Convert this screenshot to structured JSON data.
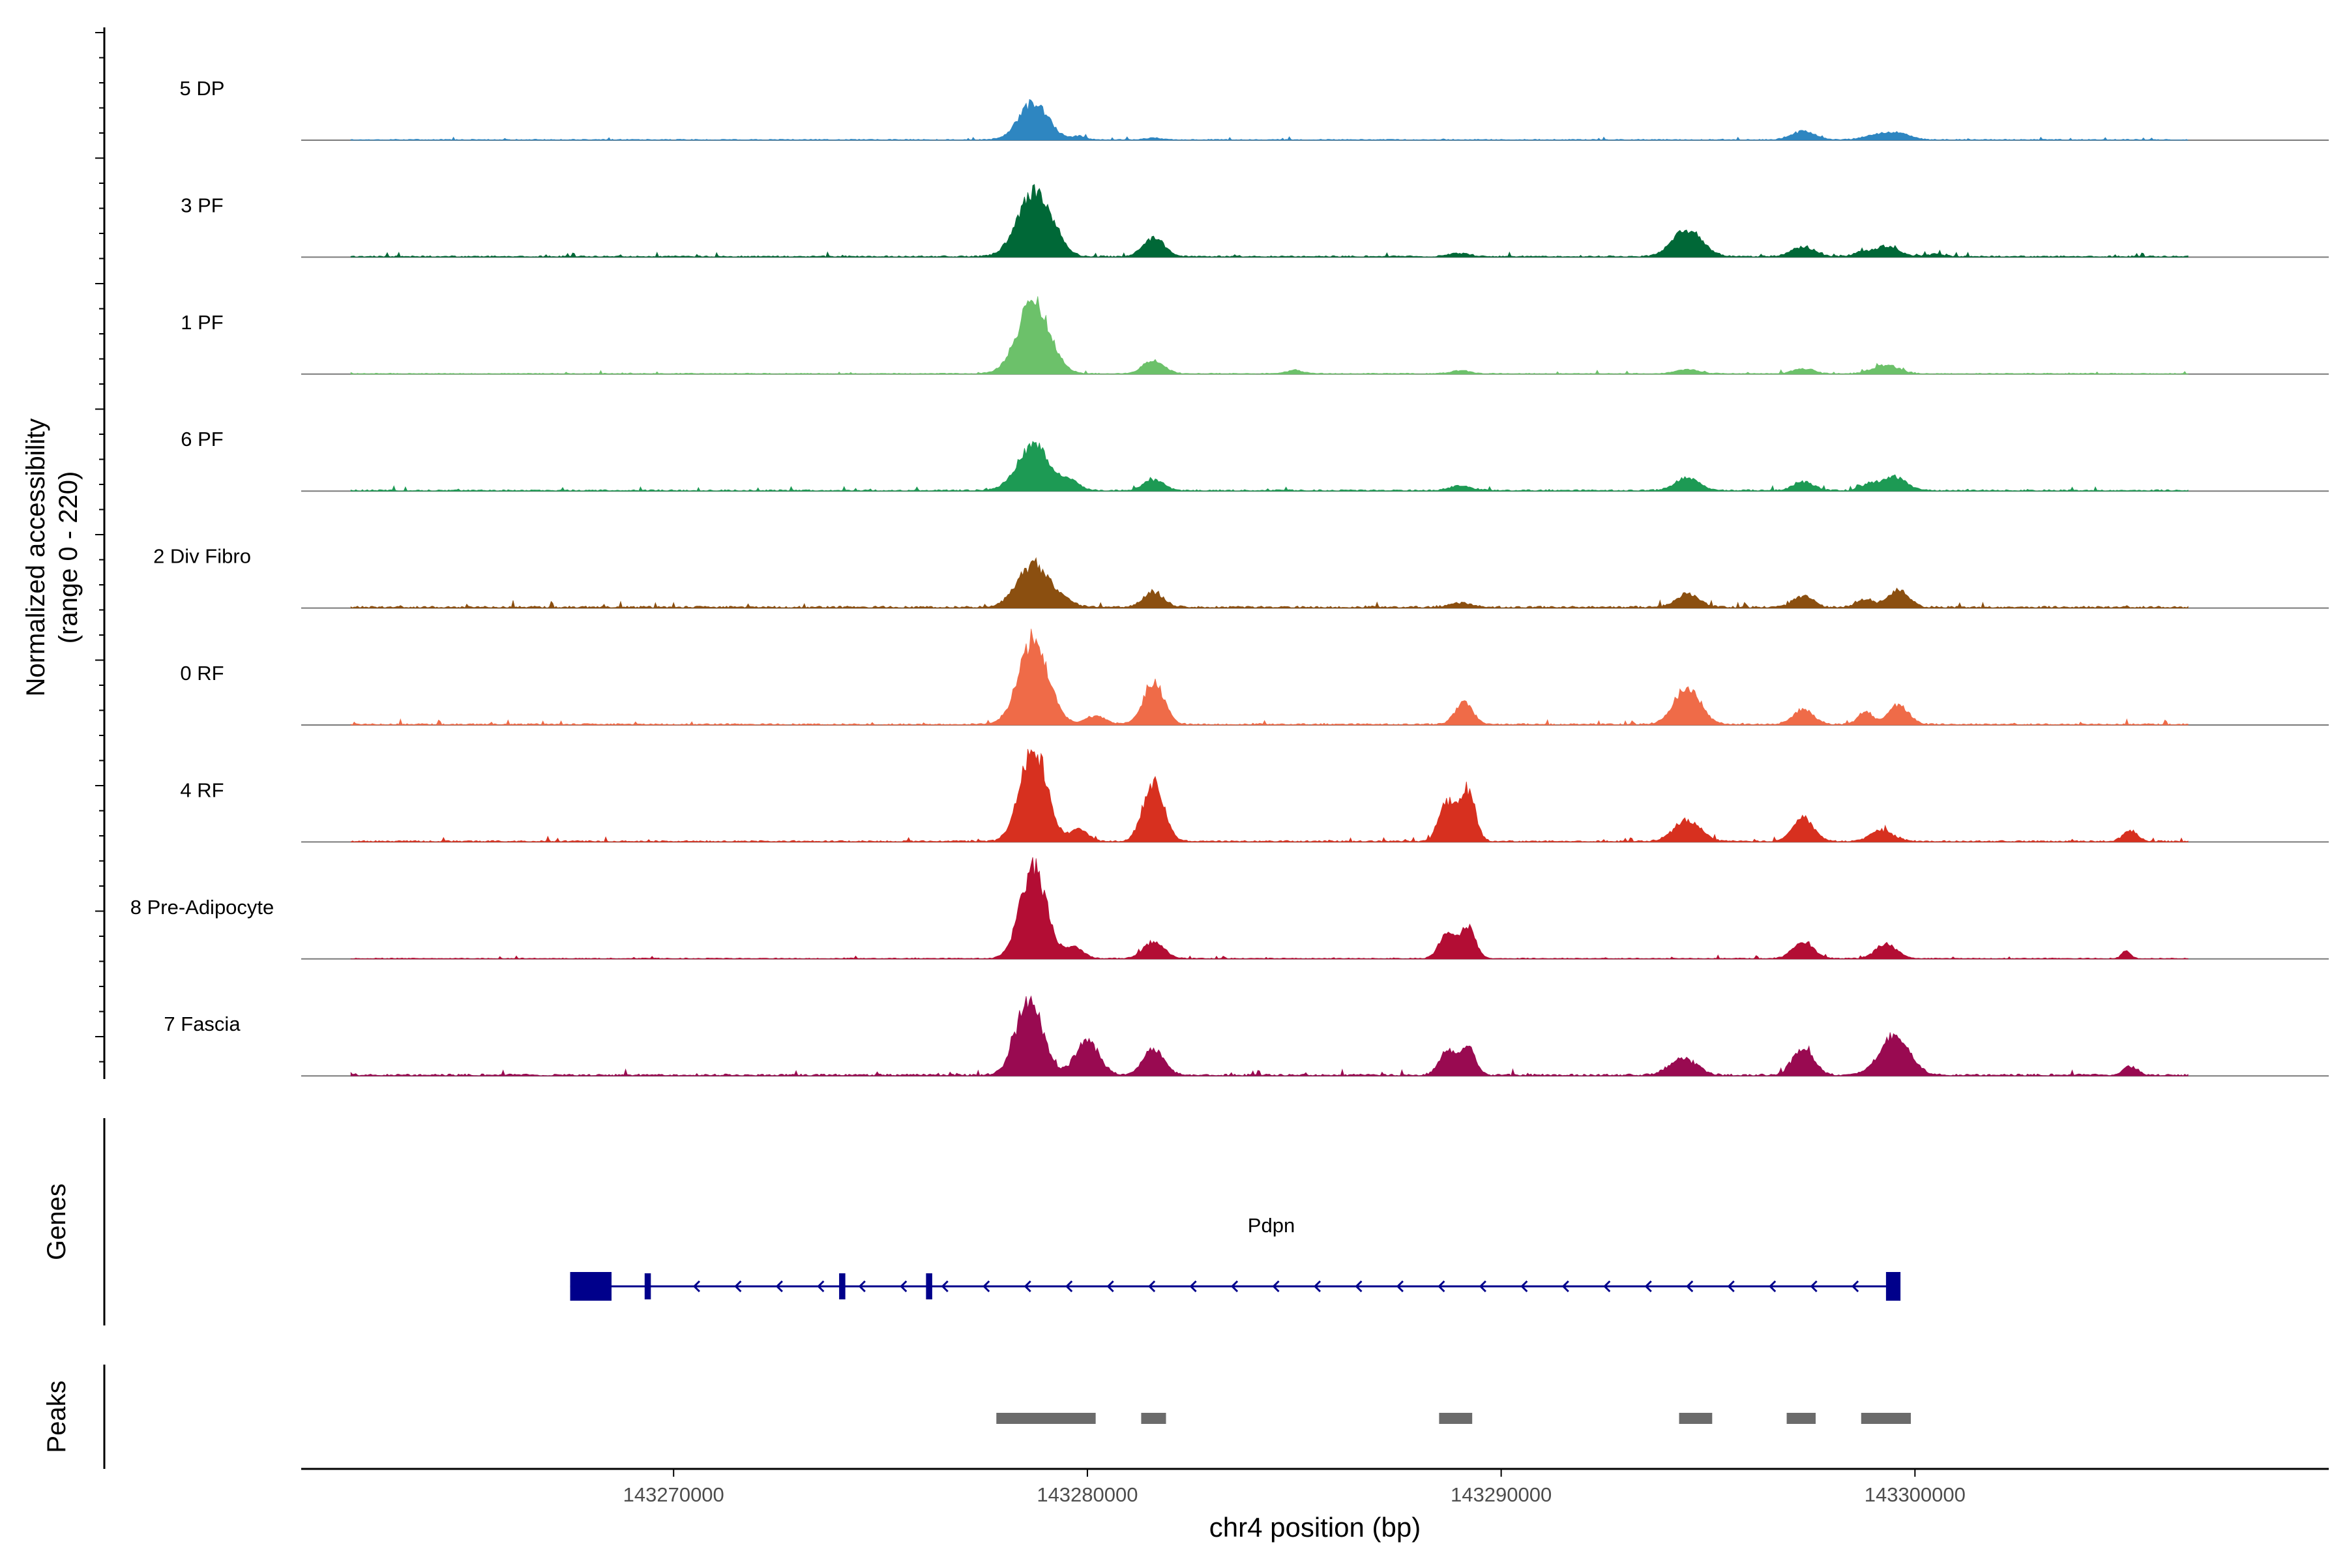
{
  "chart_data": {
    "type": "area",
    "subtype": "genome-coverage-track",
    "ylabel_line1": "Normalized accessibility",
    "ylabel_line2": "(range 0 - 220)",
    "y_range": [
      0,
      220
    ],
    "xlabel": "chr4 position (bp)",
    "xlim": [
      143261000,
      143310000
    ],
    "x_ticks": [
      143270000,
      143280000,
      143290000,
      143300000
    ],
    "x_tick_labels": [
      "143270000",
      "143280000",
      "143290000",
      "143300000"
    ],
    "tracks": [
      {
        "name": "5 DP",
        "color": "#2E86C1",
        "peaks": [
          [
            143278700,
            85,
            500
          ],
          [
            143279800,
            8,
            250
          ],
          [
            143281600,
            4,
            300
          ],
          [
            143297300,
            20,
            400
          ],
          [
            143299200,
            14,
            500
          ],
          [
            143299700,
            10,
            350
          ]
        ],
        "noise": 2
      },
      {
        "name": "3 PF",
        "color": "#006837",
        "peaks": [
          [
            143278700,
            150,
            550
          ],
          [
            143279300,
            15,
            300
          ],
          [
            143281600,
            45,
            350
          ],
          [
            143289000,
            8,
            350
          ],
          [
            143294500,
            62,
            500
          ],
          [
            143297300,
            22,
            400
          ],
          [
            143298700,
            10,
            250
          ],
          [
            143299300,
            24,
            400
          ],
          [
            143300500,
            6,
            300
          ]
        ],
        "noise": 3
      },
      {
        "name": "1 PF",
        "color": "#6CC16A",
        "peaks": [
          [
            143278700,
            165,
            550
          ],
          [
            143281600,
            32,
            350
          ],
          [
            143285000,
            8,
            300
          ],
          [
            143289000,
            8,
            300
          ],
          [
            143294500,
            10,
            400
          ],
          [
            143297300,
            12,
            350
          ],
          [
            143299300,
            20,
            450
          ]
        ],
        "noise": 2
      },
      {
        "name": "6 PF",
        "color": "#1D9A54",
        "peaks": [
          [
            143278700,
            105,
            550
          ],
          [
            143279600,
            20,
            300
          ],
          [
            143281600,
            25,
            350
          ],
          [
            143289000,
            12,
            350
          ],
          [
            143294500,
            30,
            400
          ],
          [
            143297300,
            20,
            350
          ],
          [
            143298900,
            15,
            300
          ],
          [
            143299500,
            32,
            400
          ]
        ],
        "noise": 3
      },
      {
        "name": "2 Div Fibro",
        "color": "#8B4F10",
        "peaks": [
          [
            143278700,
            100,
            550
          ],
          [
            143279500,
            12,
            300
          ],
          [
            143281600,
            35,
            350
          ],
          [
            143289000,
            10,
            350
          ],
          [
            143294500,
            30,
            400
          ],
          [
            143297300,
            25,
            350
          ],
          [
            143298800,
            18,
            300
          ],
          [
            143299600,
            40,
            350
          ]
        ],
        "noise": 4
      },
      {
        "name": "0 RF",
        "color": "#EF6B48",
        "peaks": [
          [
            143278700,
            200,
            500
          ],
          [
            143280200,
            20,
            350
          ],
          [
            143281600,
            100,
            350
          ],
          [
            143289100,
            50,
            300
          ],
          [
            143294500,
            85,
            450
          ],
          [
            143297300,
            35,
            350
          ],
          [
            143298800,
            28,
            250
          ],
          [
            143299600,
            45,
            350
          ]
        ],
        "noise": 3
      },
      {
        "name": "4 RF",
        "color": "#D7301F",
        "peaks": [
          [
            143278700,
            220,
            450
          ],
          [
            143279800,
            28,
            300
          ],
          [
            143281600,
            140,
            350
          ],
          [
            143288700,
            90,
            280
          ],
          [
            143289200,
            120,
            250
          ],
          [
            143294500,
            50,
            450
          ],
          [
            143297300,
            55,
            350
          ],
          [
            143299200,
            25,
            400
          ],
          [
            143305200,
            25,
            250
          ]
        ],
        "noise": 3
      },
      {
        "name": "8 Pre-Adipocyte",
        "color": "#B30D34",
        "peaks": [
          [
            143278700,
            210,
            450
          ],
          [
            143279700,
            25,
            300
          ],
          [
            143281600,
            40,
            350
          ],
          [
            143288700,
            55,
            280
          ],
          [
            143289200,
            72,
            250
          ],
          [
            143297300,
            40,
            350
          ],
          [
            143299300,
            35,
            350
          ],
          [
            143305100,
            18,
            150
          ]
        ],
        "noise": 2
      },
      {
        "name": "7 Fascia",
        "color": "#990A51",
        "peaks": [
          [
            143278600,
            180,
            450
          ],
          [
            143280000,
            80,
            400
          ],
          [
            143281600,
            60,
            350
          ],
          [
            143288700,
            55,
            280
          ],
          [
            143289200,
            65,
            250
          ],
          [
            143294400,
            40,
            450
          ],
          [
            143297300,
            65,
            350
          ],
          [
            143299500,
            90,
            500
          ],
          [
            143305200,
            20,
            250
          ]
        ],
        "noise": 4
      }
    ],
    "genes": {
      "label": "Genes",
      "gene_name": "Pdpn",
      "strand": "-",
      "start": 143267500,
      "end": 143299600,
      "exons": [
        [
          143267500,
          143268500
        ],
        [
          143269300,
          143269450
        ],
        [
          143274000,
          143274150
        ],
        [
          143276100,
          143276250
        ],
        [
          143299300,
          143299650
        ]
      ]
    },
    "peaks_track": {
      "label": "Peaks",
      "regions": [
        [
          143277800,
          143280200
        ],
        [
          143281300,
          143281900
        ],
        [
          143288500,
          143289300
        ],
        [
          143294300,
          143295100
        ],
        [
          143296900,
          143297600
        ],
        [
          143298700,
          143299900
        ]
      ]
    }
  }
}
